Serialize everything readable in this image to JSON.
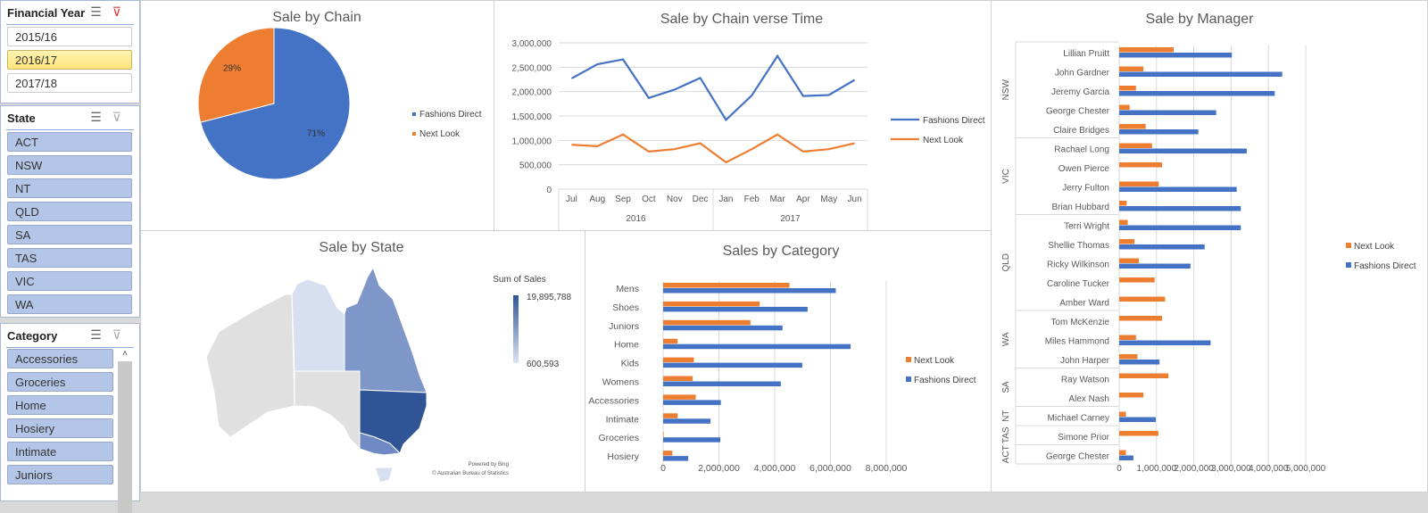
{
  "slicers": {
    "year": {
      "title": "Financial Year",
      "items": [
        "2015/16",
        "2016/17",
        "2017/18"
      ],
      "selected": "2016/17"
    },
    "state": {
      "title": "State",
      "items": [
        "ACT",
        "NSW",
        "NT",
        "QLD",
        "SA",
        "TAS",
        "VIC",
        "WA"
      ]
    },
    "category": {
      "title": "Category",
      "items": [
        "Accessories",
        "Groceries",
        "Home",
        "Hosiery",
        "Intimate",
        "Juniors"
      ]
    }
  },
  "colors": {
    "fashions_direct": "#4472c4",
    "next_look": "#ed7d31"
  },
  "chart_data": [
    {
      "type": "pie",
      "title": "Sale by Chain",
      "labels": [
        "Fashions Direct",
        "Next Look"
      ],
      "values": [
        71,
        29
      ],
      "data_labels": [
        "71%",
        "29%"
      ]
    },
    {
      "type": "line",
      "title": "Sale by Chain verse Time",
      "categories": [
        "Jul",
        "Aug",
        "Sep",
        "Oct",
        "Nov",
        "Dec",
        "Jan",
        "Feb",
        "Mar",
        "Apr",
        "May",
        "Jun"
      ],
      "groups": [
        {
          "label": "2016",
          "count": 6
        },
        {
          "label": "2017",
          "count": 6
        }
      ],
      "series": [
        {
          "name": "Fashions Direct",
          "values": [
            2270000,
            2560000,
            2660000,
            1870000,
            2040000,
            2280000,
            1420000,
            1920000,
            2730000,
            1910000,
            1930000,
            2240000
          ]
        },
        {
          "name": "Next Look",
          "values": [
            910000,
            880000,
            1120000,
            770000,
            820000,
            940000,
            550000,
            820000,
            1120000,
            770000,
            820000,
            940000
          ]
        }
      ],
      "yticks": [
        "0",
        "500,000",
        "1,000,000",
        "1,500,000",
        "2,000,000",
        "2,500,000",
        "3,000,000"
      ],
      "ylim": [
        0,
        3000000
      ]
    },
    {
      "type": "map",
      "title": "Sale by State",
      "legend_title": "Sum of Sales",
      "max_label": "19,895,788",
      "min_label": "600,593",
      "credit1": "Powered by Bing",
      "credit2": "© Australian Bureau of Statistics"
    },
    {
      "type": "bar",
      "title": "Sales by Category",
      "categories": [
        "Mens",
        "Shoes",
        "Juniors",
        "Home",
        "Kids",
        "Womens",
        "Accessories",
        "Intimate",
        "Groceries",
        "Hosiery"
      ],
      "series": [
        {
          "name": "Next Look",
          "values": [
            4530000,
            3460000,
            3130000,
            520000,
            1100000,
            1060000,
            1170000,
            520000,
            20000,
            330000
          ]
        },
        {
          "name": "Fashions Direct",
          "values": [
            6190000,
            5180000,
            4280000,
            6720000,
            4990000,
            4220000,
            2070000,
            1700000,
            2050000,
            900000
          ]
        }
      ],
      "xticks": [
        "0",
        "2,000,000",
        "4,000,000",
        "6,000,000",
        "8,000,000"
      ],
      "xlim": [
        0,
        8000000
      ]
    },
    {
      "type": "bar",
      "title": "Sale by Manager",
      "groups": [
        {
          "label": "NSW",
          "count": 5
        },
        {
          "label": "VIC",
          "count": 4
        },
        {
          "label": "QLD",
          "count": 5
        },
        {
          "label": "WA",
          "count": 3
        },
        {
          "label": "SA",
          "count": 2
        },
        {
          "label": "NT",
          "count": 1
        },
        {
          "label": "TAS",
          "count": 1
        },
        {
          "label": "ACT",
          "count": 1
        }
      ],
      "categories": [
        "Lillian Pruitt",
        "John Gardner",
        "Jeremy Garcia",
        "George Chester",
        "Claire Bridges",
        "Rachael Long",
        "Owen Pierce",
        "Jerry Fulton",
        "Brian Hubbard",
        "Terri Wright",
        "Shellie Thomas",
        "Ricky Wilkinson",
        "Caroline Tucker",
        "Amber Ward",
        "Tom McKenzie",
        "Miles Hammond",
        "John Harper",
        "Ray Watson",
        "Alex Nash",
        "Michael Carney",
        "Simone Prior",
        "George Chester"
      ],
      "series": [
        {
          "name": "Next Look",
          "values": [
            1460000,
            650000,
            450000,
            280000,
            710000,
            880000,
            1150000,
            1060000,
            200000,
            230000,
            410000,
            530000,
            950000,
            1230000,
            1150000,
            450000,
            490000,
            1320000,
            650000,
            180000,
            1050000,
            180000
          ]
        },
        {
          "name": "Fashions Direct",
          "values": [
            3020000,
            4370000,
            4170000,
            2600000,
            2120000,
            3420000,
            0,
            3150000,
            3260000,
            3260000,
            2290000,
            1910000,
            0,
            0,
            0,
            2450000,
            1080000,
            0,
            0,
            980000,
            0,
            380000
          ]
        }
      ],
      "xticks": [
        "0",
        "1,000,000",
        "2,000,000",
        "3,000,000",
        "4,000,000",
        "5,000,000"
      ],
      "xlim": [
        0,
        5000000
      ]
    }
  ]
}
